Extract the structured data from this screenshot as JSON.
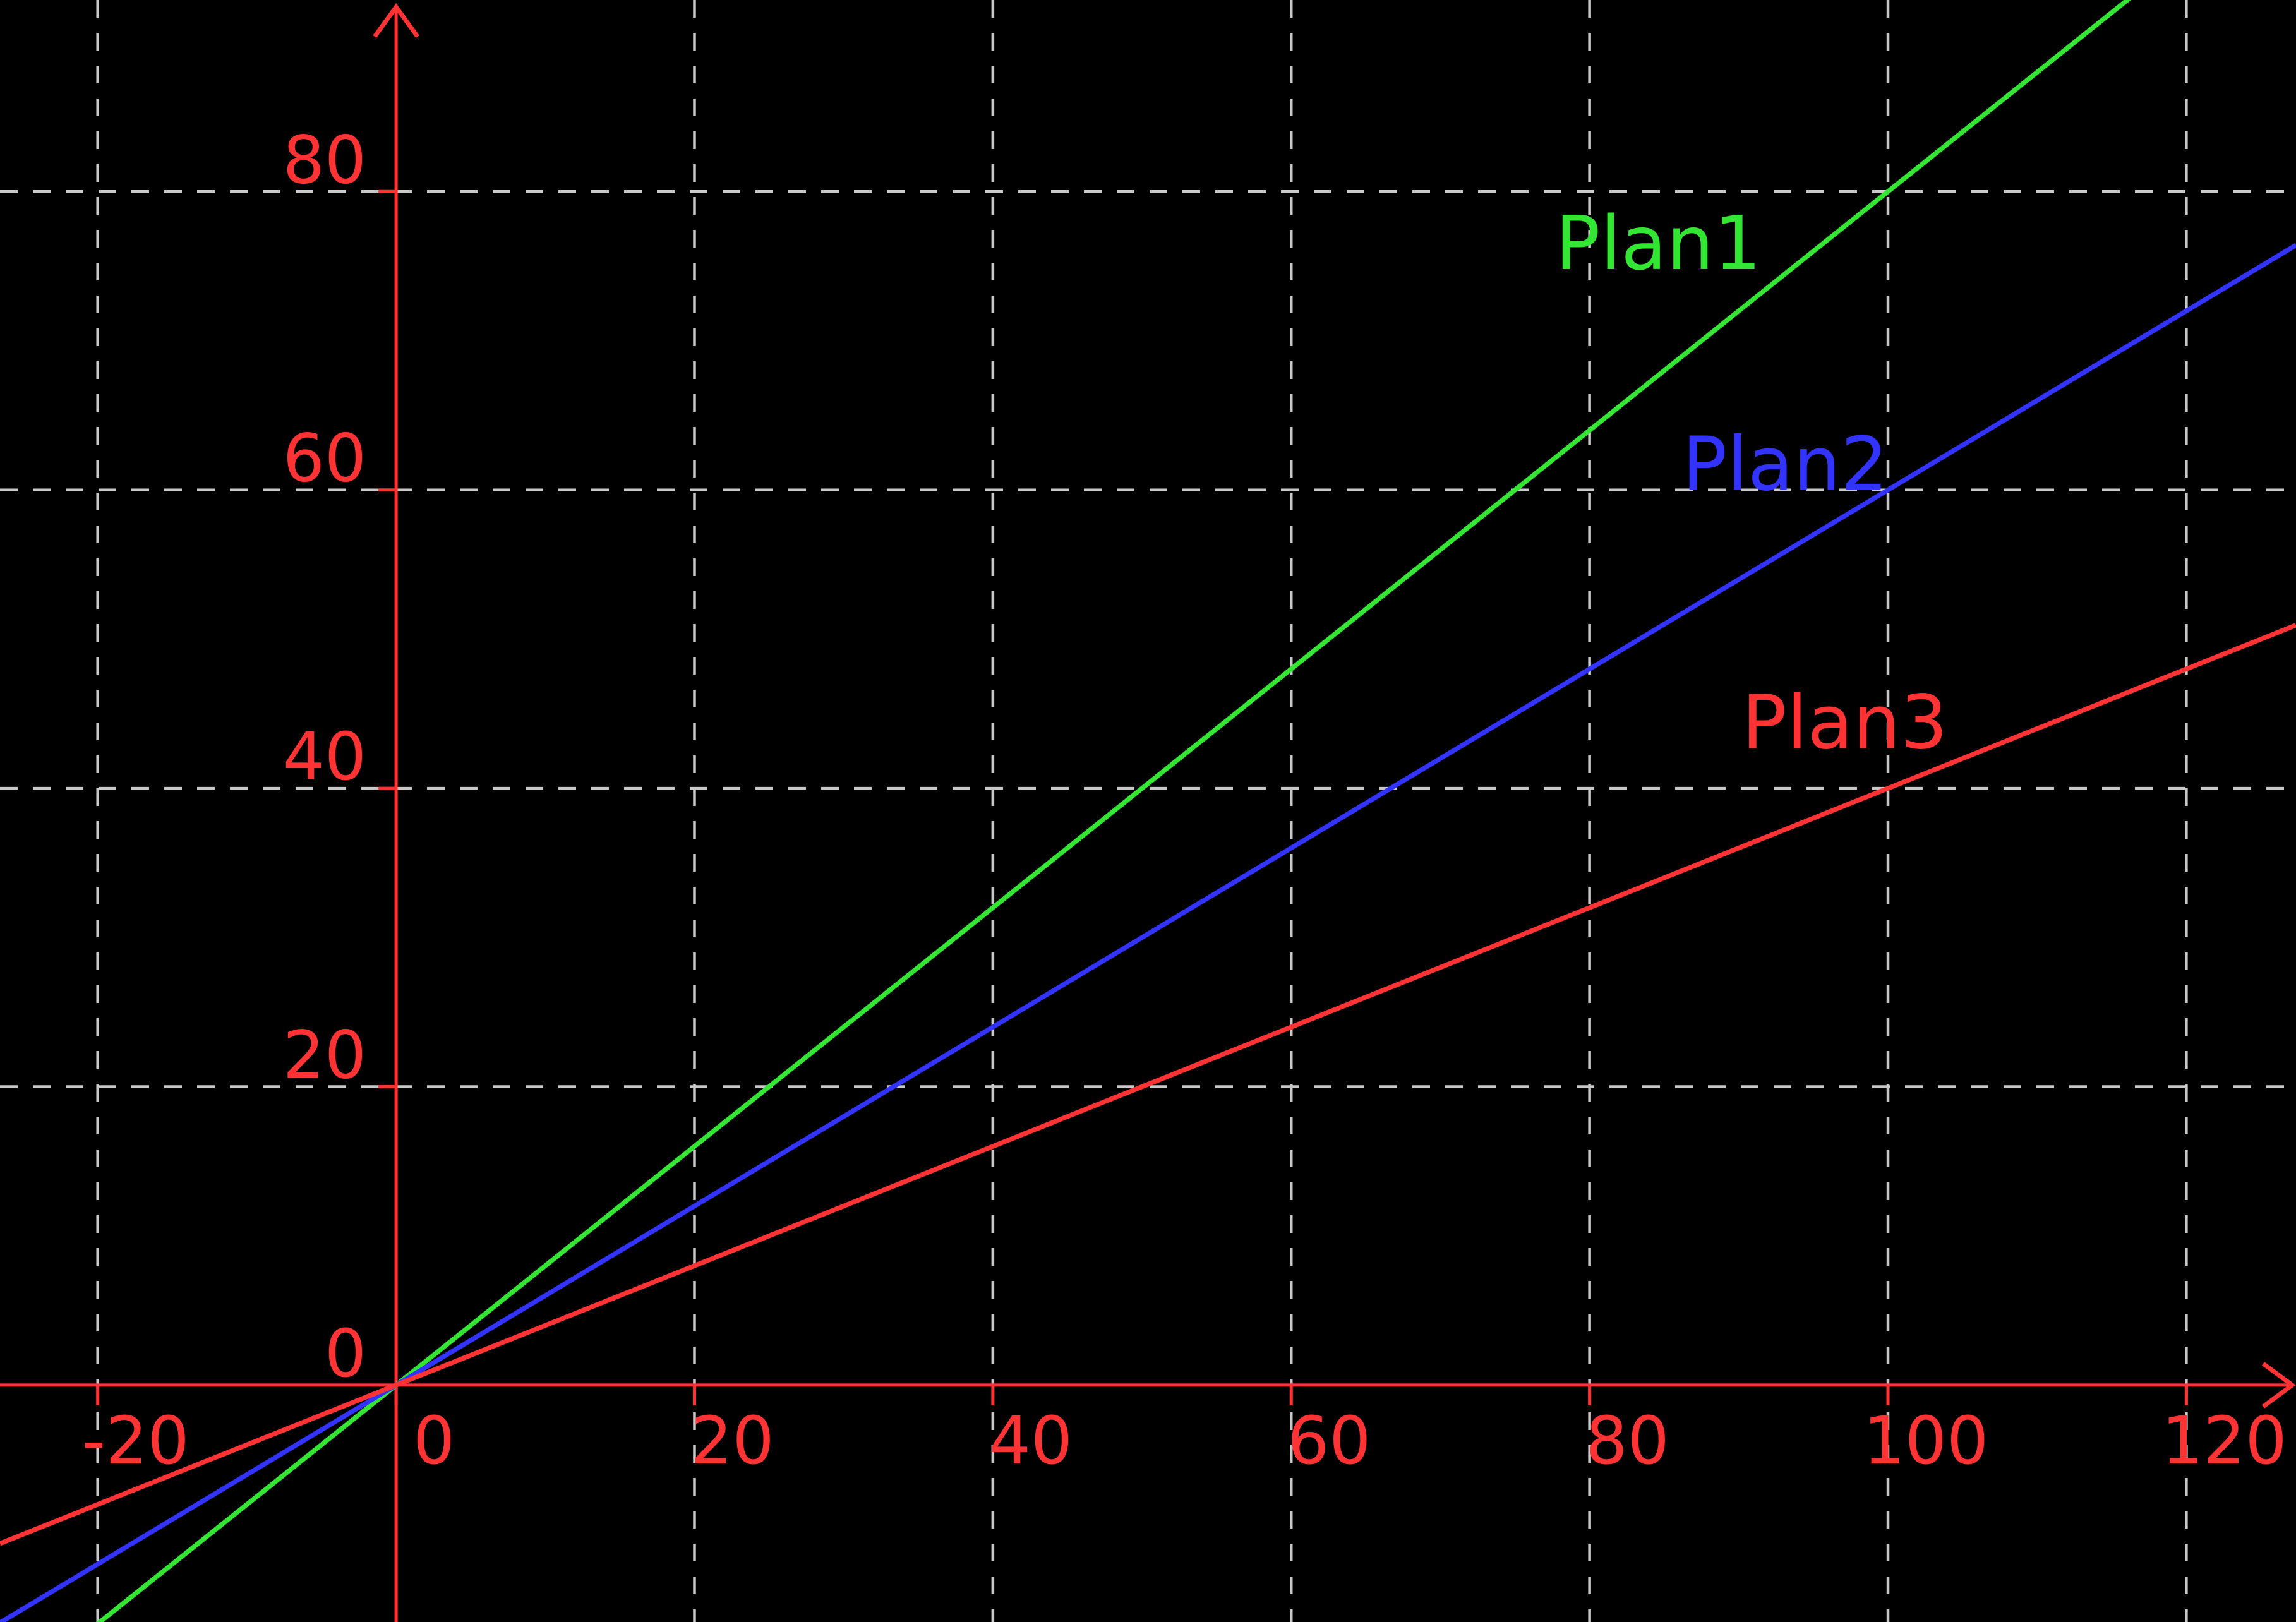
{
  "chart_data": {
    "type": "line",
    "title": "",
    "xlabel": "",
    "ylabel": "",
    "background_color": "#000000",
    "axes": {
      "color": "#ff3333",
      "x": {
        "min": -26.55,
        "max": 127.35,
        "ticks": [
          -20,
          0,
          20,
          40,
          60,
          80,
          100,
          120
        ],
        "tick_labels": [
          "-20",
          "0",
          "20",
          "40",
          "60",
          "80",
          "100",
          "120"
        ]
      },
      "y": {
        "min": -15.88,
        "max": 92.84,
        "ticks": [
          0,
          20,
          40,
          60,
          80
        ],
        "tick_labels": [
          "0",
          "20",
          "40",
          "60",
          "80"
        ]
      }
    },
    "grid": {
      "on": true,
      "color": "#c8c8c8",
      "dash": [
        28,
        24
      ],
      "x_lines": [
        -20,
        20,
        40,
        60,
        80,
        100,
        120
      ],
      "y_lines": [
        20,
        40,
        60,
        80
      ]
    },
    "legend_position": "inline-labels",
    "series": [
      {
        "name": "Plan1",
        "color": "#33e633",
        "slope": 0.8,
        "intercept": 0,
        "equation": "y = 0.8x",
        "label_pos": {
          "x": 77.7,
          "y": 74.8
        }
      },
      {
        "name": "Plan2",
        "color": "#3333ff",
        "slope": 0.6,
        "intercept": 0,
        "equation": "y = 0.6x",
        "label_pos": {
          "x": 86.2,
          "y": 60.0
        }
      },
      {
        "name": "Plan3",
        "color": "#ff3333",
        "slope": 0.4,
        "intercept": 0,
        "equation": "y = 0.4x",
        "label_pos": {
          "x": 90.2,
          "y": 42.7
        }
      }
    ]
  }
}
